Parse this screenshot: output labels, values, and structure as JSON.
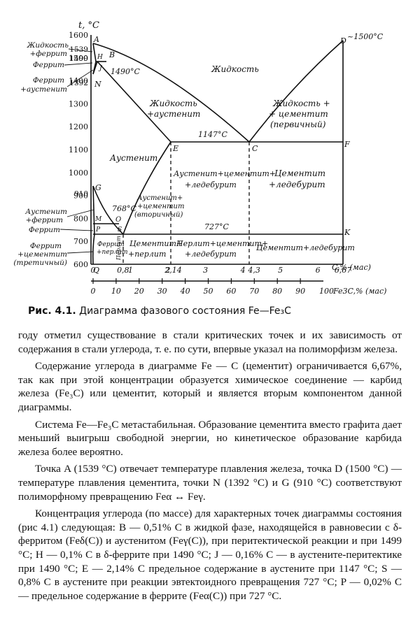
{
  "figure": {
    "y_axis_title": "t, °C",
    "y_ticks": [
      "1600",
      "1500",
      "1400",
      "1300",
      "1200",
      "1100",
      "1000",
      "900",
      "800",
      "700",
      "600"
    ],
    "y_special_labels": [
      "1539",
      "1499",
      "1392",
      "910"
    ],
    "x_top_ticks": [
      "0",
      "0,8",
      "1",
      "2",
      "2,14",
      "3",
      "4",
      "4,3",
      "5",
      "6",
      "6,67"
    ],
    "x_top_unit": "C,% (мас)",
    "x_bottom_ticks": [
      "0",
      "10",
      "20",
      "30",
      "40",
      "50",
      "60",
      "70",
      "80",
      "90"
    ],
    "x_bottom_last": "100",
    "x_bottom_unit": "Fe3C,% (мас)",
    "points": {
      "A": "A",
      "B": "B",
      "H": "H",
      "J": "J",
      "N": "N",
      "G": "G",
      "M": "M",
      "P": "P",
      "S": "S",
      "Q": "Q",
      "O": "O",
      "E": "E",
      "C": "C",
      "F": "F",
      "K": "K",
      "D": "D"
    },
    "d_label": "~1500°C",
    "temps": {
      "t1490": "1490°C",
      "t1147": "1147°C",
      "t768": "768°C",
      "t727": "727°C"
    },
    "regions": {
      "liquid": "Жидкость",
      "liquid_austenite_1": "Жидкость",
      "liquid_austenite_2": "+аустенит",
      "liquid_cementite_1": "Жидкость +",
      "liquid_cementite_2": "+ цементит",
      "liquid_cementite_3": "(первичный)",
      "austenite": "Аустенит",
      "aust_cem_led_1": "Аустенит+цементит+",
      "aust_cem_led_2": "+ледебурит",
      "cem_led_1": "Цементит",
      "cem_led_2": "+ледебурит",
      "aust_cem_sec_1": "Аустенит+",
      "aust_cem_sec_2": "+цементит",
      "aust_cem_sec_3": "(вторичный)",
      "ferrite_pearlite_1": "Феррит",
      "ferrite_pearlite_2": "+перлит",
      "pearlite_vert": "Перлит",
      "cem_pearlite_1": "Цементит+",
      "cem_pearlite_2": "+перлит",
      "pearl_cem_led_1": "Перлит+цементит+",
      "pearl_cem_led_2": "+ледебурит",
      "cem_led_low": "Цементит+ледебурит"
    },
    "left_labels": {
      "liq_ferrite_1": "Жидкость",
      "liq_ferrite_2": "+феррит",
      "ferrite_top": "Феррит",
      "ferrite_aust_1": "Феррит",
      "ferrite_aust_2": "+аустенит",
      "aust_ferrite_1": "Аустенит",
      "aust_ferrite_2": "+феррит",
      "ferrite_low": "Феррит",
      "ferrite_cem_1": "Феррит",
      "ferrite_cem_2": "+цементит",
      "ferrite_cem_3": "(третичный)"
    }
  },
  "caption": {
    "label": "Рис. 4.1.",
    "text": "Диаграмма фазового состояния Fe—Fe₃C"
  },
  "paragraphs": [
    "году отметил существование в стали критических точек и их зависимость от содержания в стали углерода, т. е. по сути, впервые указал на полиморфизм железа.",
    "Содержание углерода в диаграмме Fe — C (цементит) ограничивается 6,67%, так как при этой концентрации образуется химическое соединение — карбид железа (Fe₃C) или цементит, который и является вторым компонентом данной диаграммы.",
    "Система Fe—Fe₃C метастабильная. Образование цементита вместо графита дает меньший выигрыш свободной энергии, но кинетическое образование карбида железа более вероятно.",
    "Точка A (1539 °C) отвечает температуре плавления железа, точка D (1500 °C) — температуре плавления цементита, точки N (1392 °C) и G (910 °C) соответствуют полиморфному превращению Feα ↔ Feγ.",
    "Концентрация углерода (по массе) для характерных точек диаграммы состояния (рис 4.1) следующая: B — 0,51% C в жидкой фазе, находящейся в равновесии с δ-ферритом (Feδ(C)) и аустенитом (Feγ(C)), при перитектической реакции и при 1499 °C; H — 0,1% C в δ-феррите при 1490 °C; J — 0,16% C — в аустените-перитектике при 1490 °C; E — 2,14% C предельное содержание в аустените при 1147 °C; S — 0,8% C в аустените при реакции эвтектоидного превращения 727 °C; P — 0,02% C — предельное содержание в феррите (Feα(C)) при 727 °C."
  ]
}
